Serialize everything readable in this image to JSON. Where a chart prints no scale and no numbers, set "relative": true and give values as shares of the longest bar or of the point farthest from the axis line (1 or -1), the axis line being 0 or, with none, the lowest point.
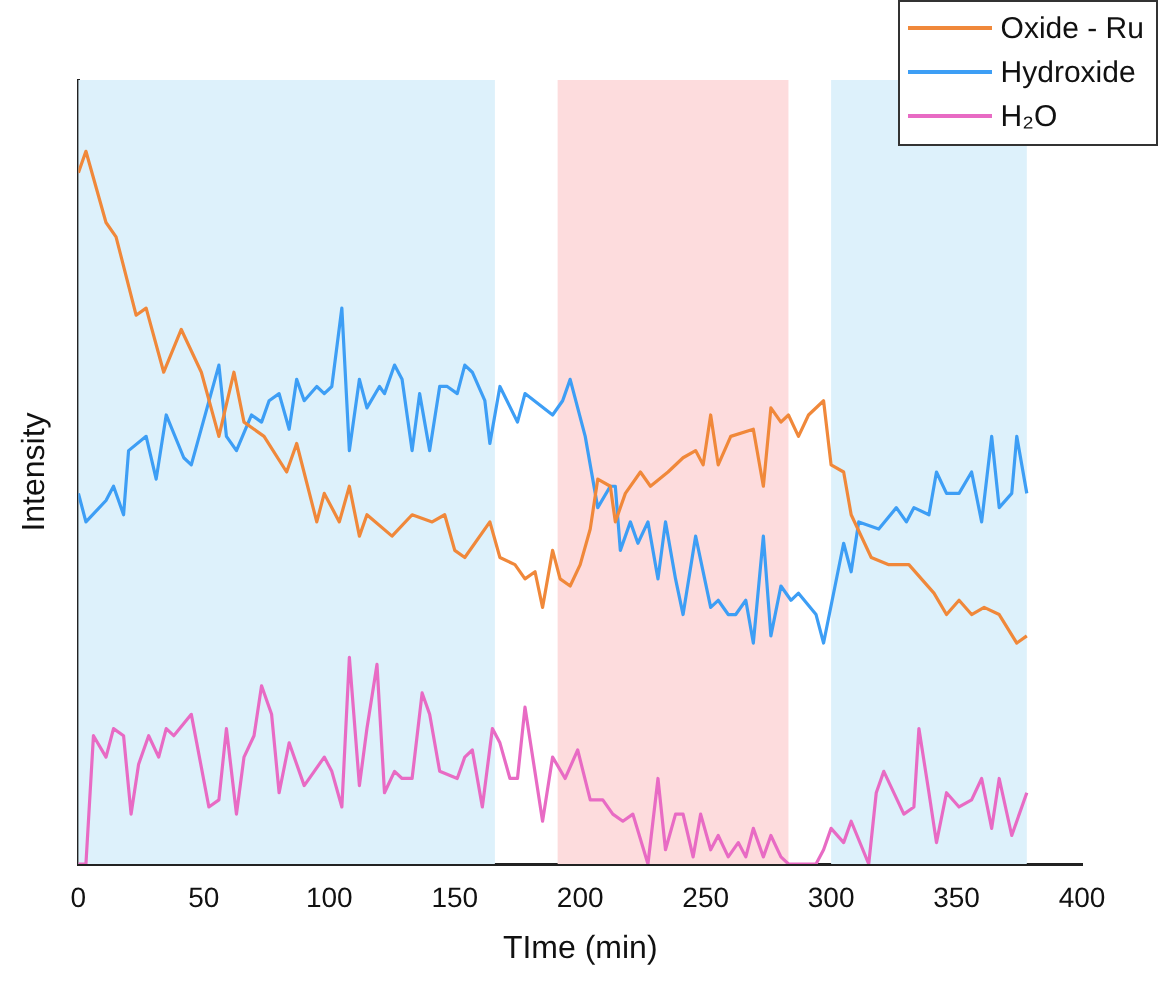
{
  "chart_data": {
    "type": "line",
    "xlabel": "TIme (min)",
    "ylabel": "Intensity",
    "relative": true,
    "xlim": [
      0,
      400
    ],
    "xticks": [
      0,
      50,
      100,
      150,
      200,
      250,
      300,
      350,
      400
    ],
    "grid": false,
    "legend": "top right",
    "marker": "none",
    "line_style": "solid",
    "bands": [
      {
        "axis": "x",
        "from": 0,
        "to": 166,
        "color": "#ddf1fb"
      },
      {
        "axis": "x",
        "from": 191,
        "to": 283,
        "color": "#fddcdd"
      },
      {
        "axis": "x",
        "from": 300,
        "to": 378,
        "color": "#ddf1fb"
      }
    ],
    "series": [
      {
        "name": "Oxide - Ru",
        "color": "#f0883a",
        "x": [
          0,
          3,
          11,
          15,
          23,
          27,
          34,
          41,
          49,
          56,
          62,
          66,
          74,
          83,
          87,
          95,
          98,
          104,
          108,
          112,
          115,
          125,
          133,
          141,
          146,
          150,
          154,
          164,
          168,
          174,
          178,
          182,
          185,
          189,
          192,
          196,
          200,
          204,
          207,
          212,
          214,
          218,
          224,
          228,
          235,
          241,
          246,
          249,
          252,
          255,
          260,
          269,
          273,
          276,
          280,
          283,
          287,
          291,
          297,
          300,
          305,
          308,
          316,
          323,
          331,
          341,
          346,
          351,
          356,
          361,
          367,
          374,
          378
        ],
        "values": [
          0.97,
          1.0,
          0.9,
          0.88,
          0.77,
          0.78,
          0.69,
          0.75,
          0.69,
          0.6,
          0.69,
          0.62,
          0.6,
          0.55,
          0.59,
          0.48,
          0.52,
          0.48,
          0.53,
          0.46,
          0.49,
          0.46,
          0.49,
          0.48,
          0.49,
          0.44,
          0.43,
          0.48,
          0.43,
          0.42,
          0.4,
          0.41,
          0.36,
          0.44,
          0.4,
          0.39,
          0.42,
          0.47,
          0.54,
          0.53,
          0.48,
          0.52,
          0.55,
          0.53,
          0.55,
          0.57,
          0.58,
          0.56,
          0.63,
          0.56,
          0.6,
          0.61,
          0.53,
          0.64,
          0.62,
          0.63,
          0.6,
          0.63,
          0.65,
          0.56,
          0.55,
          0.49,
          0.43,
          0.42,
          0.42,
          0.38,
          0.35,
          0.37,
          0.35,
          0.36,
          0.35,
          0.31,
          0.32
        ]
      },
      {
        "name": "Hydroxide",
        "color": "#3d9ef5",
        "x": [
          0,
          3,
          11,
          14,
          18,
          20,
          27,
          31,
          35,
          42,
          45,
          56,
          59,
          63,
          69,
          73,
          76,
          80,
          84,
          87,
          90,
          95,
          98,
          101,
          105,
          108,
          112,
          115,
          120,
          122,
          126,
          129,
          133,
          136,
          140,
          144,
          147,
          151,
          154,
          157,
          162,
          164,
          168,
          175,
          178,
          189,
          193,
          196,
          202,
          207,
          212,
          214,
          216,
          220,
          223,
          227,
          231,
          234,
          238,
          241,
          246,
          252,
          255,
          259,
          262,
          266,
          269,
          273,
          276,
          280,
          284,
          287,
          294,
          297,
          305,
          308,
          311,
          319,
          326,
          330,
          333,
          339,
          342,
          346,
          351,
          356,
          360,
          364,
          367,
          372,
          374,
          378
        ],
        "values": [
          0.52,
          0.48,
          0.51,
          0.53,
          0.49,
          0.58,
          0.6,
          0.54,
          0.63,
          0.57,
          0.56,
          0.7,
          0.6,
          0.58,
          0.63,
          0.62,
          0.65,
          0.66,
          0.61,
          0.68,
          0.65,
          0.67,
          0.66,
          0.67,
          0.78,
          0.58,
          0.68,
          0.64,
          0.67,
          0.66,
          0.7,
          0.68,
          0.58,
          0.66,
          0.58,
          0.67,
          0.67,
          0.66,
          0.7,
          0.69,
          0.65,
          0.59,
          0.67,
          0.62,
          0.66,
          0.63,
          0.65,
          0.68,
          0.6,
          0.5,
          0.53,
          0.53,
          0.44,
          0.48,
          0.45,
          0.48,
          0.4,
          0.48,
          0.4,
          0.35,
          0.46,
          0.36,
          0.37,
          0.35,
          0.35,
          0.37,
          0.31,
          0.46,
          0.32,
          0.39,
          0.37,
          0.38,
          0.35,
          0.31,
          0.45,
          0.41,
          0.48,
          0.47,
          0.5,
          0.48,
          0.5,
          0.49,
          0.55,
          0.52,
          0.52,
          0.55,
          0.48,
          0.6,
          0.5,
          0.52,
          0.6,
          0.52
        ]
      },
      {
        "name": "H₂O",
        "color": "#e86bc4",
        "x": [
          0,
          3,
          6,
          11,
          14,
          18,
          21,
          24,
          28,
          32,
          35,
          38,
          45,
          52,
          56,
          59,
          63,
          66,
          70,
          73,
          77,
          80,
          84,
          90,
          94,
          98,
          101,
          105,
          108,
          112,
          115,
          119,
          122,
          126,
          129,
          133,
          137,
          140,
          144,
          151,
          154,
          157,
          161,
          165,
          168,
          172,
          175,
          178,
          185,
          189,
          194,
          199,
          204,
          209,
          213,
          217,
          221,
          227,
          231,
          234,
          238,
          241,
          245,
          248,
          252,
          255,
          259,
          263,
          266,
          269,
          273,
          276,
          280,
          283,
          294,
          297,
          300,
          305,
          308,
          315,
          318,
          321,
          329,
          333,
          335,
          339,
          342,
          346,
          351,
          356,
          360,
          364,
          367,
          372,
          378
        ],
        "values": [
          0.0,
          0.0,
          0.18,
          0.15,
          0.19,
          0.18,
          0.07,
          0.14,
          0.18,
          0.15,
          0.19,
          0.18,
          0.21,
          0.08,
          0.09,
          0.19,
          0.07,
          0.15,
          0.18,
          0.25,
          0.21,
          0.1,
          0.17,
          0.11,
          0.13,
          0.15,
          0.13,
          0.08,
          0.29,
          0.11,
          0.19,
          0.28,
          0.1,
          0.13,
          0.12,
          0.12,
          0.24,
          0.21,
          0.13,
          0.12,
          0.15,
          0.16,
          0.08,
          0.19,
          0.17,
          0.12,
          0.12,
          0.22,
          0.06,
          0.15,
          0.12,
          0.16,
          0.09,
          0.09,
          0.07,
          0.06,
          0.07,
          0.0,
          0.12,
          0.02,
          0.07,
          0.07,
          0.01,
          0.07,
          0.02,
          0.04,
          0.01,
          0.03,
          0.01,
          0.05,
          0.01,
          0.04,
          0.01,
          0.0,
          0.0,
          0.02,
          0.05,
          0.03,
          0.06,
          0.0,
          0.1,
          0.13,
          0.07,
          0.08,
          0.19,
          0.1,
          0.03,
          0.1,
          0.08,
          0.09,
          0.12,
          0.05,
          0.12,
          0.04,
          0.1
        ]
      }
    ]
  }
}
